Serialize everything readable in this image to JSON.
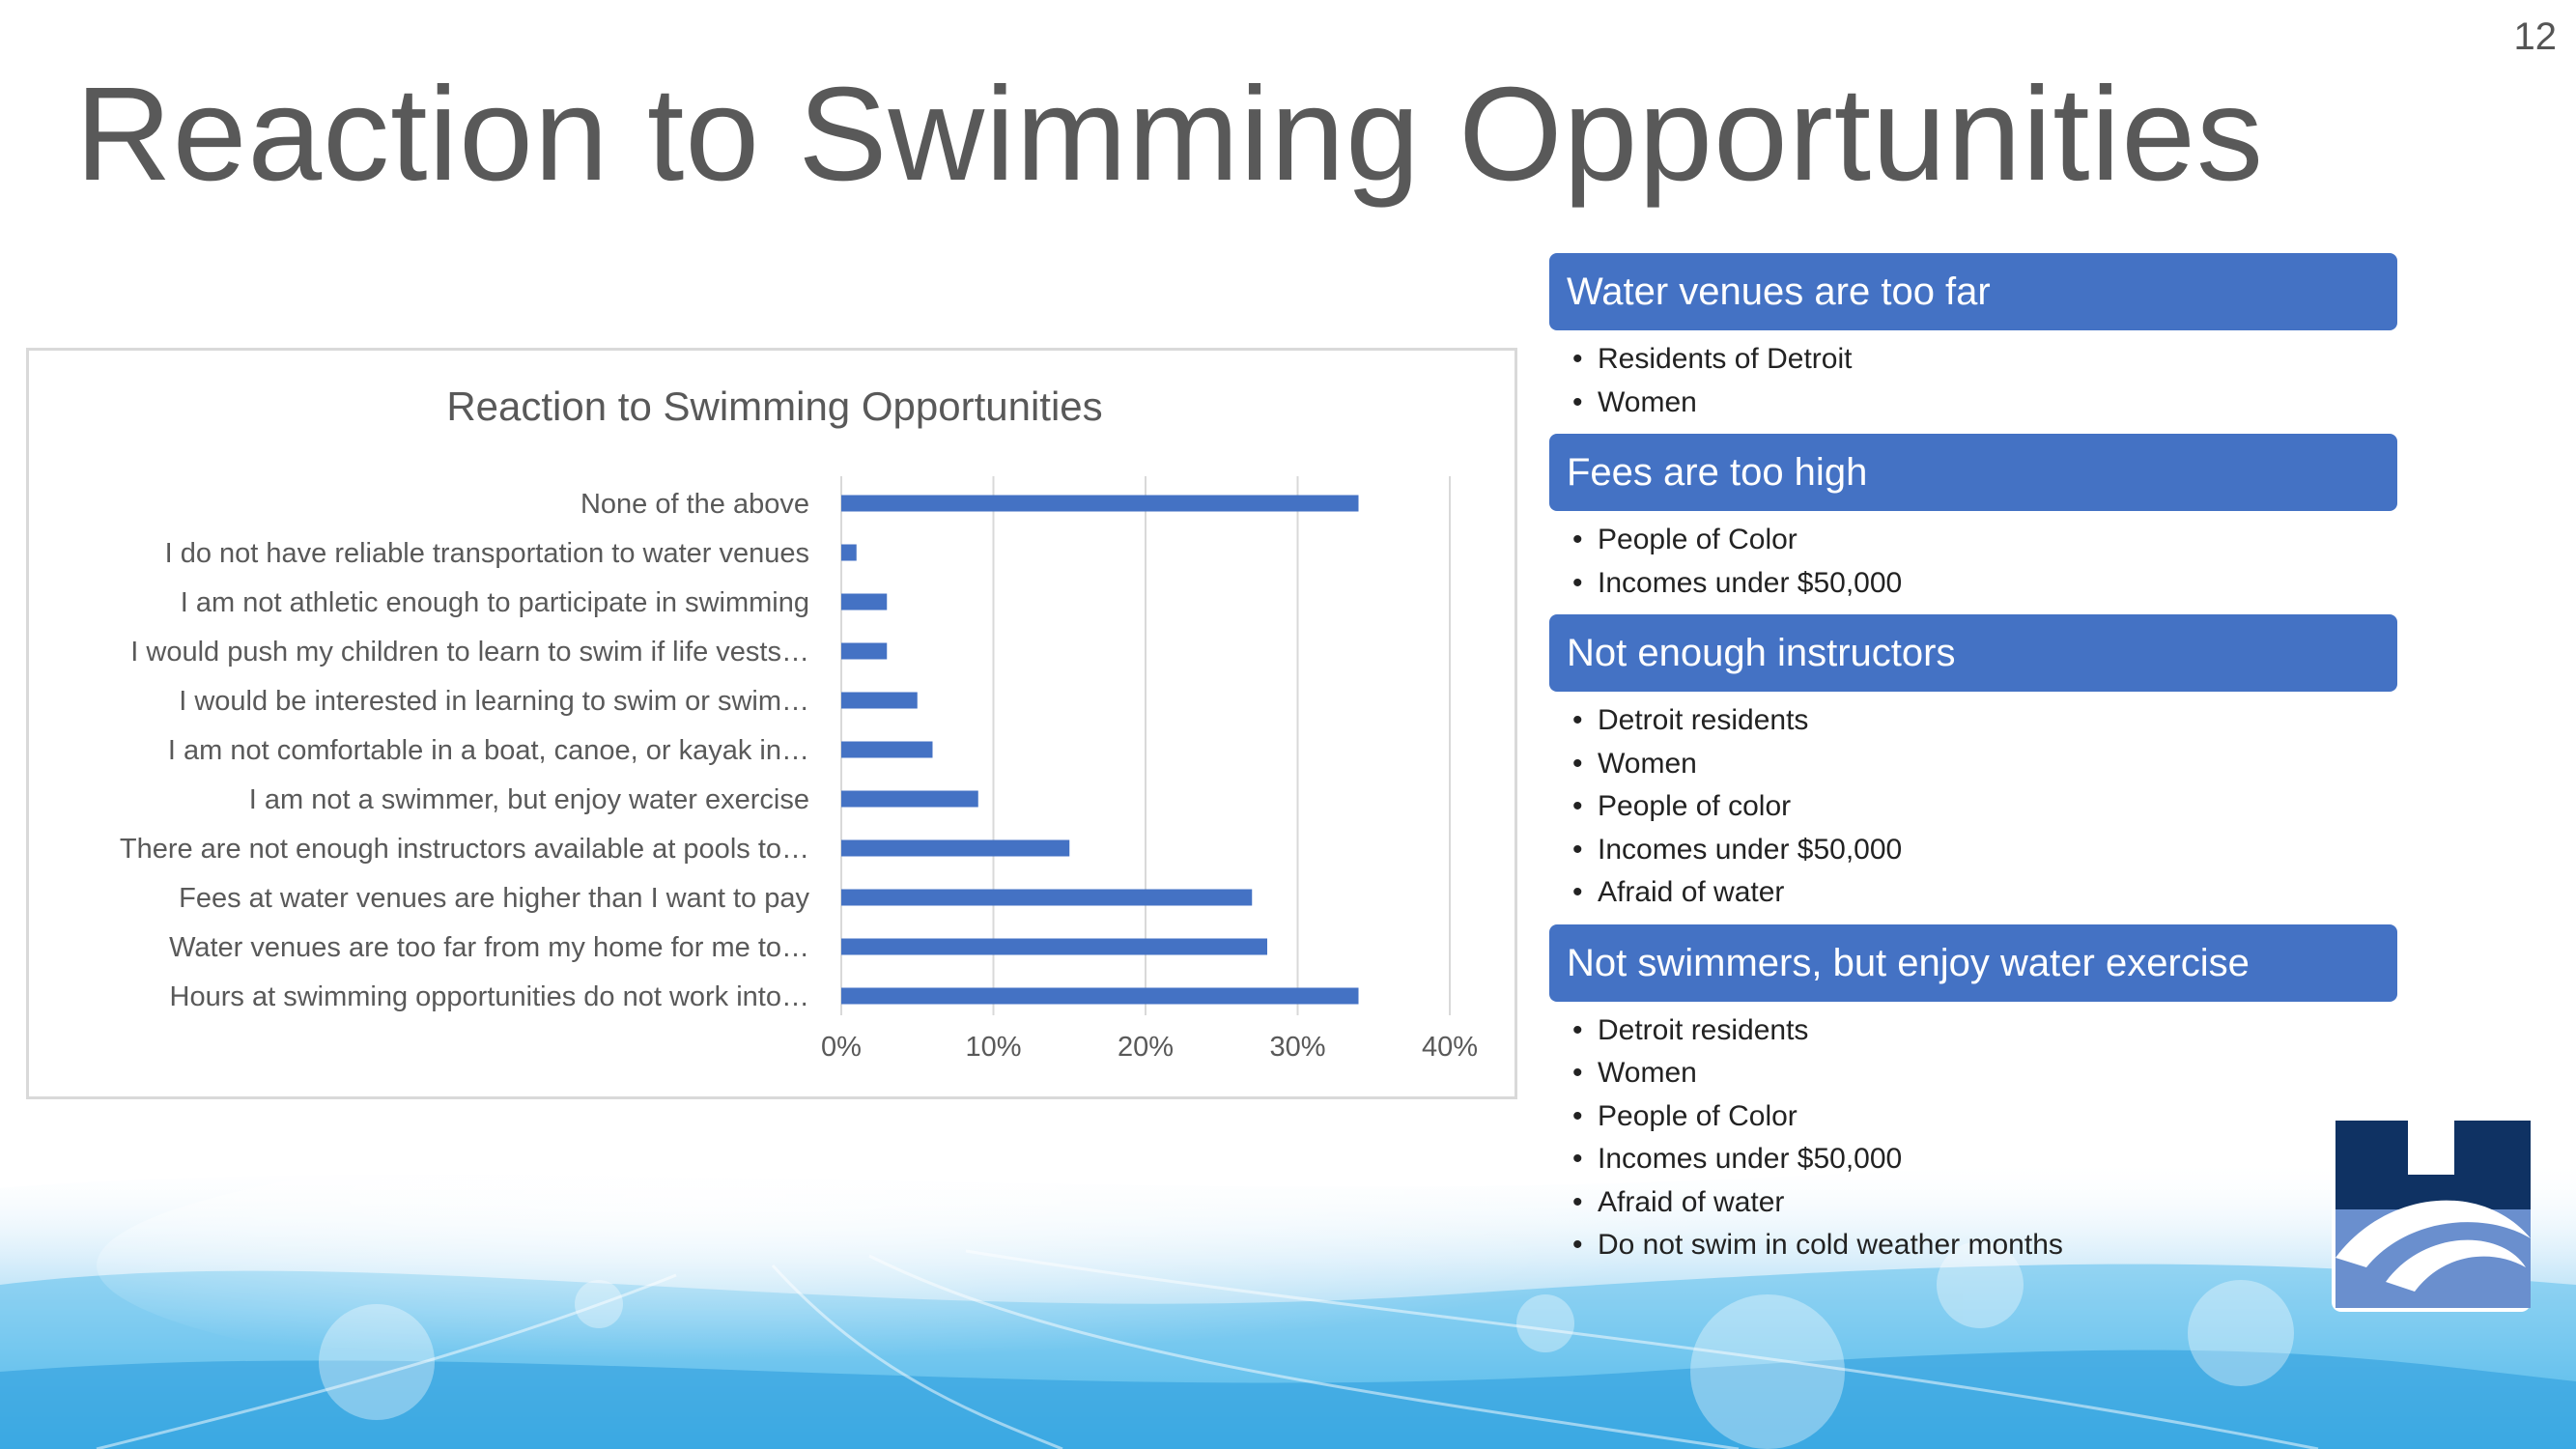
{
  "page_number": "12",
  "slide_title": "Reaction to Swimming Opportunities",
  "colors": {
    "accent": "#4472c4",
    "bar": "#4472c4",
    "title_text": "#595959",
    "logo_dark": "#0f3263",
    "logo_light": "#6a8fce"
  },
  "chart_data": {
    "type": "bar",
    "orientation": "horizontal",
    "title": "Reaction to Swimming Opportunities",
    "categories": [
      "None of the above",
      "I do not have reliable transportation to water venues",
      "I am not athletic enough to participate in swimming",
      "I would push my children to learn to swim if life vests…",
      "I would be interested in learning to swim or swim…",
      "I am not comfortable in a boat, canoe, or kayak in…",
      "I am not a swimmer, but enjoy water exercise",
      "There are not enough instructors available at pools to…",
      "Fees at water venues are higher than I want to pay",
      "Water venues are too far from my home for me to…",
      "Hours at swimming opportunities do not work into…"
    ],
    "values": [
      34,
      1,
      3,
      3,
      5,
      6,
      9,
      15,
      27,
      28,
      34
    ],
    "unit": "percent",
    "xlim": [
      0,
      40
    ],
    "x_ticks": [
      "0%",
      "10%",
      "20%",
      "30%",
      "40%"
    ],
    "grid": "vertical",
    "legend": "none"
  },
  "groups": [
    {
      "header": "Water venues are too far",
      "items": [
        "Residents of Detroit",
        "Women"
      ]
    },
    {
      "header": "Fees are too high",
      "items": [
        "People of Color",
        "Incomes under $50,000"
      ]
    },
    {
      "header": "Not enough instructors",
      "items": [
        "Detroit residents",
        "Women",
        "People of color",
        "Incomes under $50,000",
        "Afraid of water"
      ]
    },
    {
      "header": "Not swimmers, but enjoy water exercise",
      "items": [
        "Detroit residents",
        "Women",
        "People of Color",
        "Incomes under $50,000",
        "Afraid of water",
        "Do not swim in cold weather months"
      ]
    }
  ],
  "logo": {
    "icon": "organization-logo-icon"
  }
}
